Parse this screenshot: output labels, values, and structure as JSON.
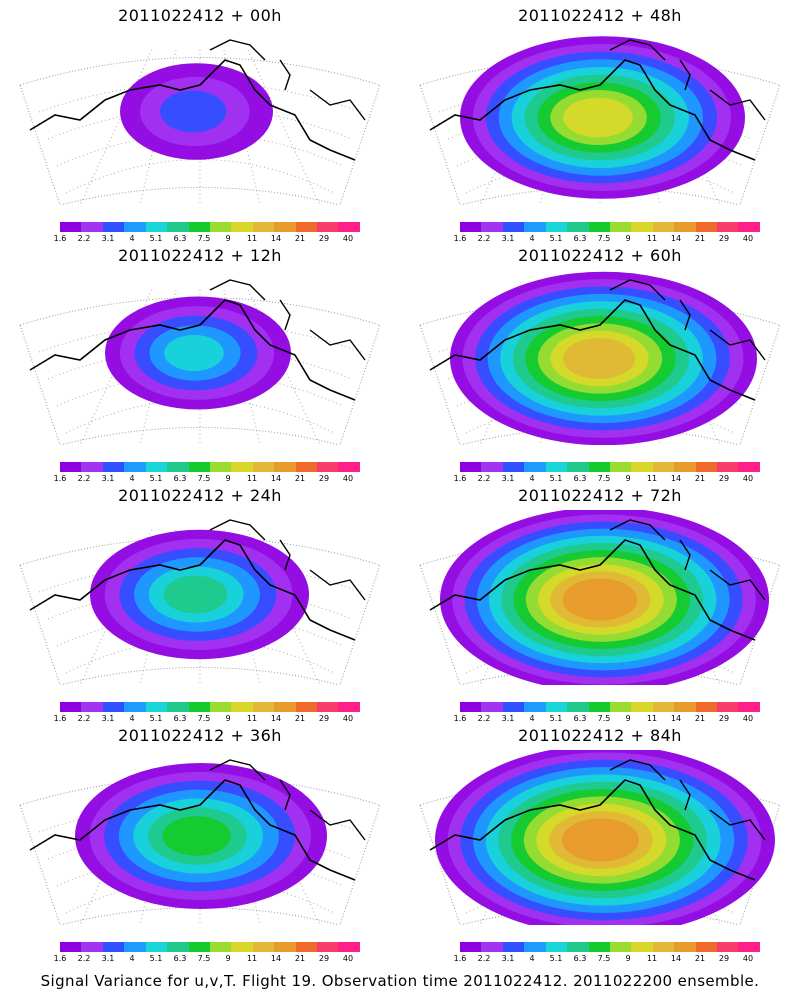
{
  "colorbar": {
    "colors": [
      "#8e00e0",
      "#a233f0",
      "#3050ff",
      "#1e9bff",
      "#19d4d8",
      "#20c98a",
      "#16c92c",
      "#9bdc33",
      "#d8d82a",
      "#e2b836",
      "#e89a2c",
      "#ef6a2a",
      "#f73b6a",
      "#ff1f8a"
    ],
    "labels": [
      "1.6",
      "2.2",
      "3.1",
      "4",
      "5.1",
      "6.3",
      "7.5",
      "9",
      "11",
      "14",
      "21",
      "29",
      "40"
    ]
  },
  "panels": [
    {
      "title": "2011022412 + 00h",
      "intensity": 0.15
    },
    {
      "title": "2011022412 + 48h",
      "intensity": 0.75
    },
    {
      "title": "2011022412 + 12h",
      "intensity": 0.3
    },
    {
      "title": "2011022412 + 60h",
      "intensity": 0.85
    },
    {
      "title": "2011022412 + 24h",
      "intensity": 0.45
    },
    {
      "title": "2011022412 + 72h",
      "intensity": 0.95
    },
    {
      "title": "2011022412 + 36h",
      "intensity": 0.6
    },
    {
      "title": "2011022412 + 84h",
      "intensity": 1.0
    }
  ],
  "caption": "Signal Variance for u,v,T. Flight 19. Observation time 2011022412. 2011022200 ensemble."
}
